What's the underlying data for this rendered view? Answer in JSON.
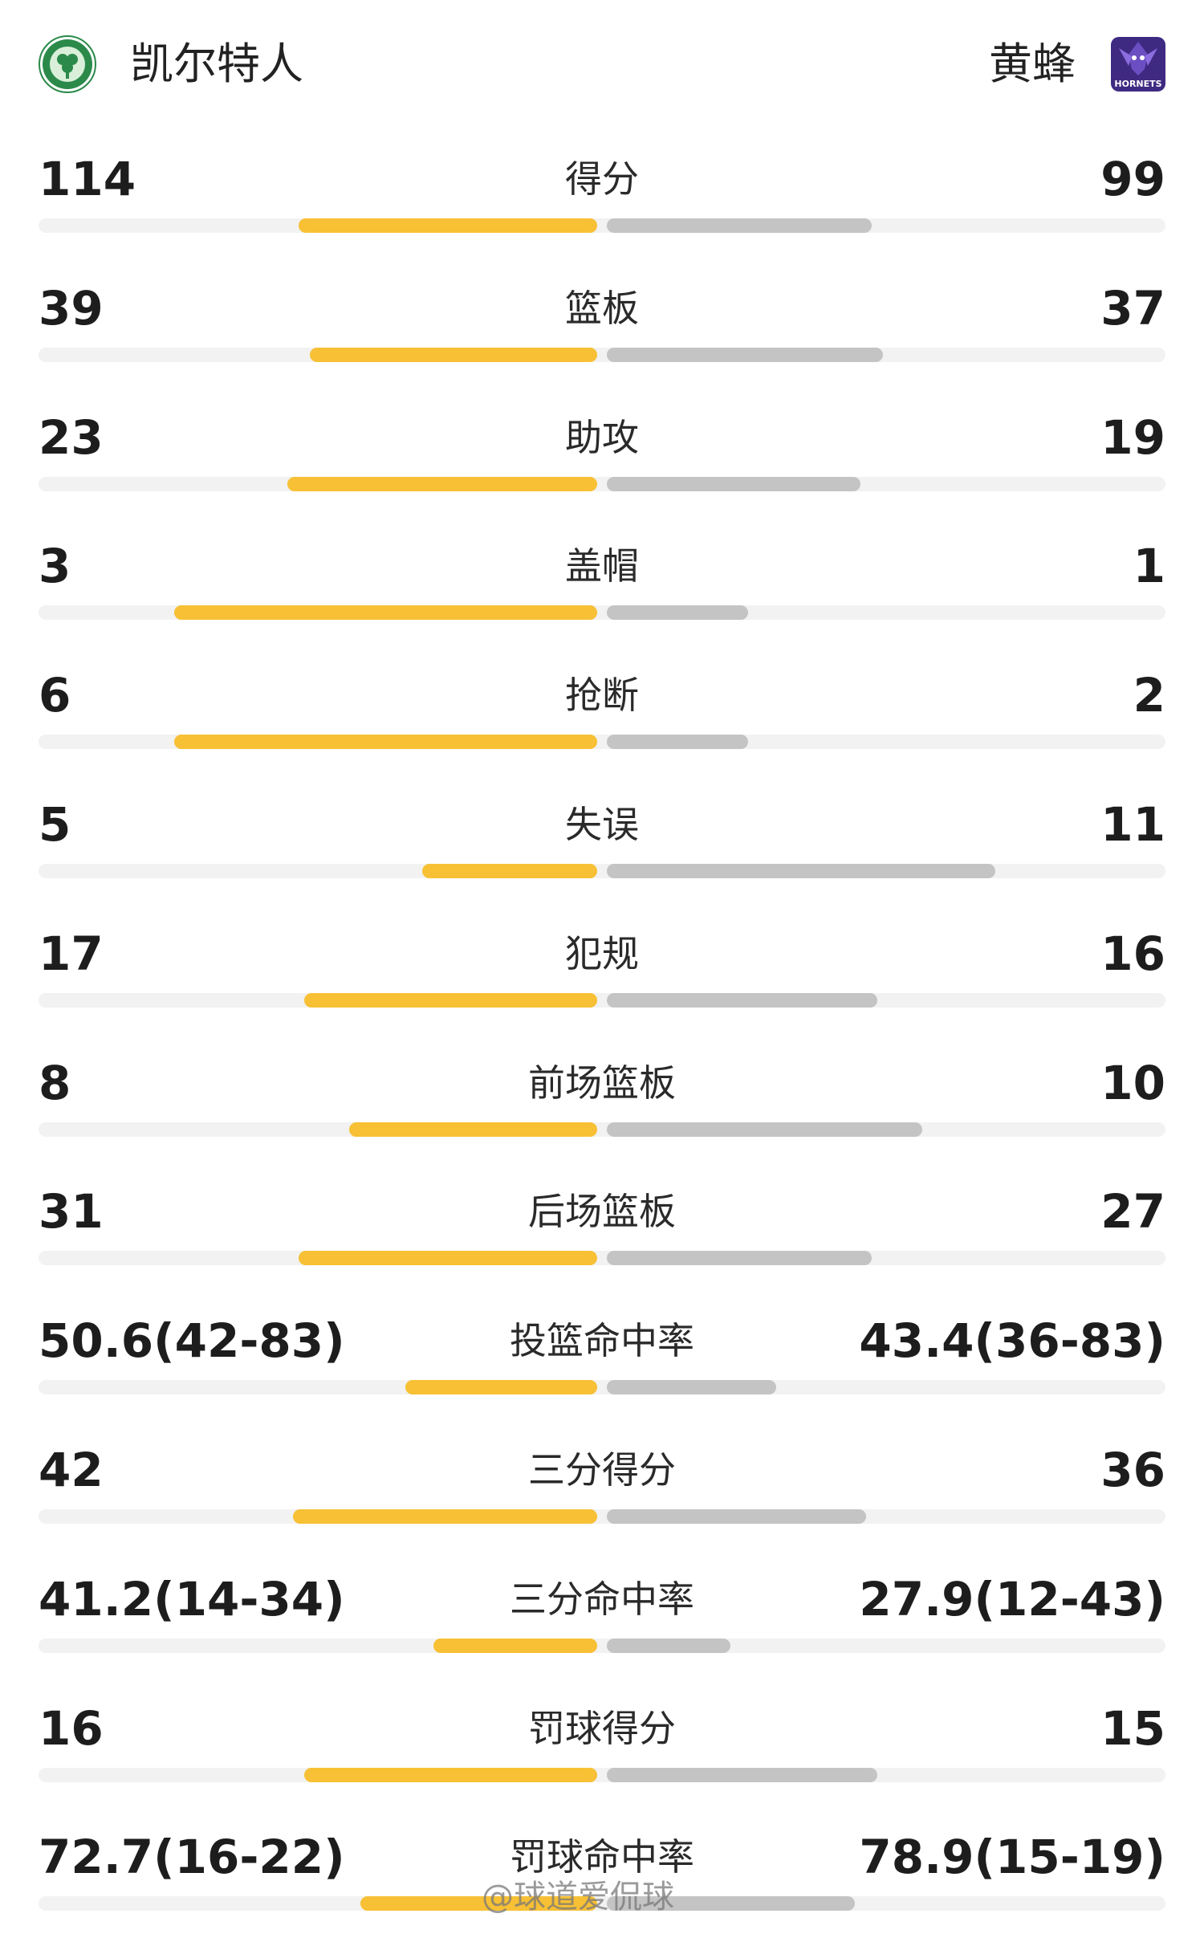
{
  "header": {
    "left_team": "凯尔特人",
    "right_team": "黄蜂",
    "left_logo_icon": "celtics-logo-icon",
    "right_logo_icon": "hornets-logo-icon",
    "right_logo_text": "HORNETS"
  },
  "colors": {
    "left_bar": "#f7c035",
    "right_bar": "#c4c4c4",
    "track": "#f2f2f2"
  },
  "stats": [
    {
      "label": "得分",
      "left": "114",
      "right": "99",
      "left_share": 0.53,
      "right_share": 0.47
    },
    {
      "label": "篮板",
      "left": "39",
      "right": "37",
      "left_share": 0.51,
      "right_share": 0.49
    },
    {
      "label": "助攻",
      "left": "23",
      "right": "19",
      "left_share": 0.55,
      "right_share": 0.45
    },
    {
      "label": "盖帽",
      "left": "3",
      "right": "1",
      "left_share": 0.75,
      "right_share": 0.25
    },
    {
      "label": "抢断",
      "left": "6",
      "right": "2",
      "left_share": 0.75,
      "right_share": 0.25
    },
    {
      "label": "失误",
      "left": "5",
      "right": "11",
      "left_share": 0.31,
      "right_share": 0.69
    },
    {
      "label": "犯规",
      "left": "17",
      "right": "16",
      "left_share": 0.52,
      "right_share": 0.48
    },
    {
      "label": "前场篮板",
      "left": "8",
      "right": "10",
      "left_share": 0.44,
      "right_share": 0.56
    },
    {
      "label": "后场篮板",
      "left": "31",
      "right": "27",
      "left_share": 0.53,
      "right_share": 0.47
    },
    {
      "label": "投篮命中率",
      "left": "50.6(42-83)",
      "right": "43.4(36-83)",
      "left_share": 0.34,
      "right_share": 0.3
    },
    {
      "label": "三分得分",
      "left": "42",
      "right": "36",
      "left_share": 0.54,
      "right_share": 0.46
    },
    {
      "label": "三分命中率",
      "left": "41.2(14-34)",
      "right": "27.9(12-43)",
      "left_share": 0.29,
      "right_share": 0.22
    },
    {
      "label": "罚球得分",
      "left": "16",
      "right": "15",
      "left_share": 0.52,
      "right_share": 0.48
    },
    {
      "label": "罚球命中率",
      "left": "72.7(16-22)",
      "right": "78.9(15-19)",
      "left_share": 0.42,
      "right_share": 0.44
    }
  ],
  "watermark": "@球道爱侃球"
}
